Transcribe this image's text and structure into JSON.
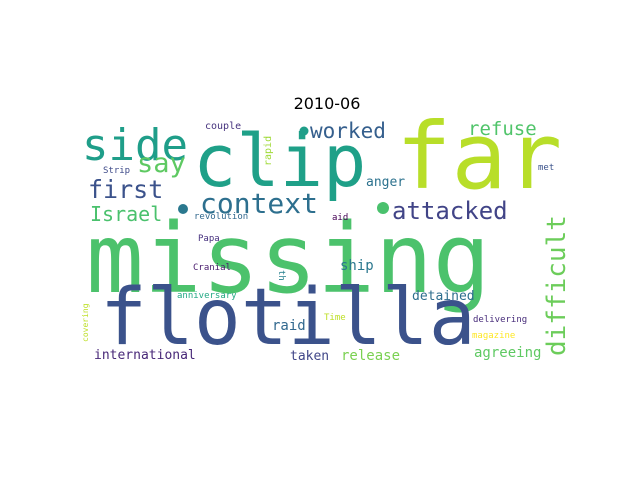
{
  "chart_data": {
    "type": "wordcloud",
    "title": "2010-06",
    "words": [
      {
        "text": "missing",
        "weight": 100,
        "color": "#4cc26c"
      },
      {
        "text": "far",
        "weight": 78,
        "color": "#b8de29"
      },
      {
        "text": "flotilla",
        "weight": 76,
        "color": "#3b528b"
      },
      {
        "text": "clip",
        "weight": 60,
        "color": "#1fa088"
      },
      {
        "text": "side",
        "weight": 36,
        "color": "#1f9e89"
      },
      {
        "text": "context",
        "weight": 24,
        "color": "#2d6f8e"
      },
      {
        "text": "difficult",
        "weight": 22,
        "color": "#6ccd5a"
      },
      {
        "text": "say",
        "weight": 21,
        "color": "#5ec962"
      },
      {
        "text": "attacked",
        "weight": 20,
        "color": "#414487"
      },
      {
        "text": "first",
        "weight": 20,
        "color": "#3b528b"
      },
      {
        "text": "worked",
        "weight": 18,
        "color": "#355f8d"
      },
      {
        "text": "refuse",
        "weight": 17,
        "color": "#50c46a"
      },
      {
        "text": "Israel",
        "weight": 17,
        "color": "#4ac16d"
      },
      {
        "text": "anger",
        "weight": 11,
        "color": "#2c728e"
      },
      {
        "text": "ship",
        "weight": 11,
        "color": "#2a778e"
      },
      {
        "text": "raid",
        "weight": 11,
        "color": "#31688e"
      },
      {
        "text": "international",
        "weight": 11,
        "color": "#482878"
      },
      {
        "text": "taken",
        "weight": 11,
        "color": "#404688"
      },
      {
        "text": "release",
        "weight": 11,
        "color": "#7ad151"
      },
      {
        "text": "agreeing",
        "weight": 11,
        "color": "#5ec962"
      },
      {
        "text": "detained",
        "weight": 10,
        "color": "#2e6e8e"
      },
      {
        "text": "couple",
        "weight": 8,
        "color": "#46337e"
      },
      {
        "text": "rapid",
        "weight": 8,
        "color": "#a0da39"
      },
      {
        "text": "Strip",
        "weight": 8,
        "color": "#3e4a89"
      },
      {
        "text": "revolution",
        "weight": 8,
        "color": "#31688e"
      },
      {
        "text": "aid",
        "weight": 8,
        "color": "#440154"
      },
      {
        "text": "Papa",
        "weight": 8,
        "color": "#46317e"
      },
      {
        "text": "th",
        "weight": 8,
        "color": "#27808e"
      },
      {
        "text": "Cranial",
        "weight": 8,
        "color": "#481a6c"
      },
      {
        "text": "anniversary",
        "weight": 8,
        "color": "#22a884"
      },
      {
        "text": "covering",
        "weight": 8,
        "color": "#bddf26"
      },
      {
        "text": "Time",
        "weight": 8,
        "color": "#bddf26"
      },
      {
        "text": "met",
        "weight": 8,
        "color": "#3b528b"
      },
      {
        "text": "delivering",
        "weight": 8,
        "color": "#472c7a"
      },
      {
        "text": "magazine",
        "weight": 8,
        "color": "#fde725"
      }
    ],
    "dots_color": [
      "#1f9e89",
      "#2a788e",
      "#4ac16d"
    ]
  }
}
